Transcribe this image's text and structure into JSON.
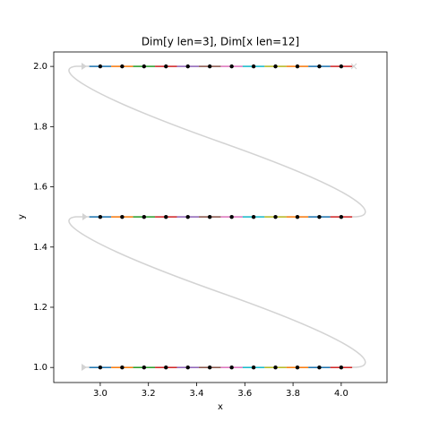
{
  "chart_data": {
    "type": "scatter",
    "title": "Dim[y len=3], Dim[x len=12]",
    "x_label": "x",
    "y_label": "y",
    "x": [
      3.0,
      3.0909,
      3.1818,
      3.2727,
      3.3636,
      3.4545,
      3.5455,
      3.6364,
      3.7273,
      3.8182,
      3.9091,
      4.0
    ],
    "series": [
      {
        "color": "#000000",
        "values": [
          2.0,
          2.0,
          2.0,
          2.0,
          2.0,
          2.0,
          2.0,
          2.0,
          2.0,
          2.0,
          2.0,
          2.0
        ]
      },
      {
        "color": "#000000",
        "values": [
          1.5,
          1.5,
          1.5,
          1.5,
          1.5,
          1.5,
          1.5,
          1.5,
          1.5,
          1.5,
          1.5,
          1.5
        ]
      },
      {
        "color": "#000000",
        "values": [
          1.0,
          1.0,
          1.0,
          1.0,
          1.0,
          1.0,
          1.0,
          1.0,
          1.0,
          1.0,
          1.0,
          1.0
        ]
      }
    ],
    "segment_colors": [
      "#1f77b4",
      "#ff7f0e",
      "#2ca02c",
      "#d62728",
      "#9467bd",
      "#8c564b",
      "#e377c2",
      "#17becf",
      "#bcbd22",
      "#ff7f0e",
      "#1f77b4",
      "#d62728"
    ],
    "xlim": [
      2.807,
      4.19
    ],
    "ylim": [
      0.95,
      2.048
    ],
    "xticks": [
      {
        "value": 3.0,
        "label": "3.0"
      },
      {
        "value": 3.2,
        "label": "3.2"
      },
      {
        "value": 3.4,
        "label": "3.4"
      },
      {
        "value": 3.6,
        "label": "3.6"
      },
      {
        "value": 3.8,
        "label": "3.8"
      },
      {
        "value": 4.0,
        "label": "4.0"
      }
    ],
    "yticks": [
      {
        "value": 1.0,
        "label": "1.0"
      },
      {
        "value": 1.2,
        "label": "1.2"
      },
      {
        "value": 1.4,
        "label": "1.4"
      },
      {
        "value": 1.6,
        "label": "1.6"
      },
      {
        "value": 1.8,
        "label": "1.8"
      },
      {
        "value": 2.0,
        "label": "2.0"
      }
    ],
    "grid": false
  }
}
